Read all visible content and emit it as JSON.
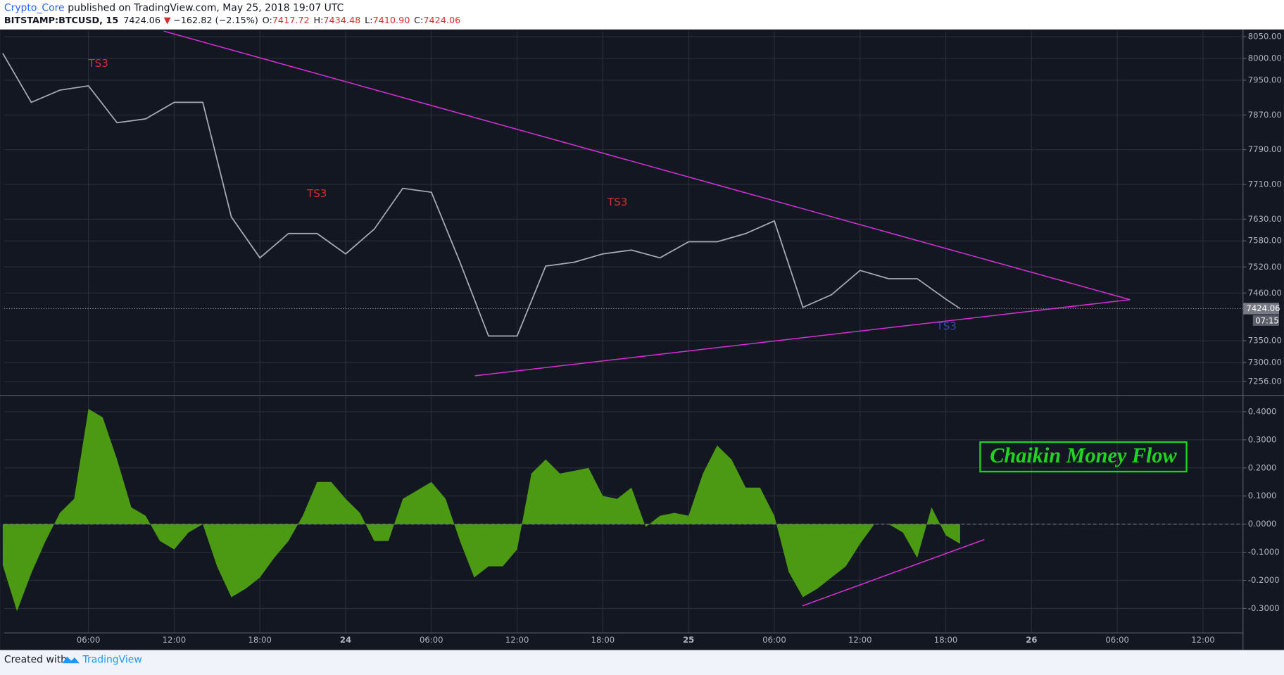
{
  "header": {
    "author": "Crypto_Core",
    "published": "published on TradingView.com, May 25, 2018 19:07 UTC",
    "symbol": "BITSTAMP:BTCUSD, 15",
    "change_arrow": "▼",
    "change": "−162.82 (−2.15%)",
    "ohlc": [
      {
        "label": "O:",
        "value": "7417.72"
      },
      {
        "label": "H:",
        "value": "7434.48"
      },
      {
        "label": "L:",
        "value": "7410.90"
      },
      {
        "label": "C:"
      }
    ]
  },
  "chart_data": [
    {
      "type": "line",
      "x": [
        0,
        2,
        4,
        6,
        8,
        10,
        12,
        14,
        16,
        18,
        20,
        22,
        24,
        26,
        28,
        30,
        32,
        34,
        36,
        38,
        40,
        42,
        44,
        46,
        48,
        50,
        52,
        54,
        56,
        58,
        60,
        62,
        64,
        66,
        67
      ],
      "series": [
        {
          "color": "#a7abb8",
          "values": [
            8012,
            7899,
            7927,
            7937,
            7852,
            7861,
            7899,
            7899,
            7635,
            7541,
            7597,
            7597,
            7550,
            7607,
            7701,
            7692,
            7531,
            7361,
            7361,
            7522,
            7531,
            7550,
            7559,
            7541,
            7578,
            7578,
            7597,
            7626,
            7427,
            7456,
            7512,
            7493,
            7493,
            7446,
            7424.06
          ]
        }
      ],
      "xlim": [
        0.1,
        86.8
      ],
      "ylim": [
        7226,
        8063
      ],
      "xticks": [
        {
          "value": 6,
          "label": "06:00"
        },
        {
          "value": 12,
          "label": "12:00"
        },
        {
          "value": 18,
          "label": "18:00"
        },
        24,
        {
          "value": 30,
          "label": "06:00"
        },
        {
          "value": 36,
          "label": "12:00"
        },
        {
          "value": 42,
          "label": "18:00"
        },
        {
          "value": 48,
          "label": "25"
        },
        {
          "value": 54,
          "label": "06:00"
        },
        {
          "value": 60,
          "label": "12:00"
        },
        {
          "value": 66,
          "label": "18:00"
        },
        {
          "value": 72,
          "label": "26"
        },
        {
          "value": 78,
          "label": "06:00"
        },
        {
          "value": 84,
          "label": "12:00"
        }
      ],
      "yticks": [
        {
          "value": 8050,
          "label": "8050.00"
        },
        {
          "value": 8000,
          "label": "8000.00"
        },
        {
          "value": 7950,
          "label": "7950.00"
        },
        {
          "value": 7870,
          "label": "7870.00"
        },
        {
          "value": 7790,
          "label": "7790.00"
        },
        {
          "value": 7710,
          "label": "7710.00"
        },
        {
          "value": 7630,
          "label": "7630.00"
        },
        {
          "value": 7580,
          "label": "7580.00"
        },
        {
          "value": 7520,
          "label": "7520.00"
        },
        {
          "value": 7460,
          "label": "7460.00"
        },
        {
          "value": 7350,
          "label": "7350.00"
        },
        {
          "value": 7300,
          "label": "7300.00"
        },
        {
          "value": 7256,
          "label": "7256.00"
        }
      ],
      "grid": true,
      "last_price": {
        "value": 7424.06,
        "label": "7424.06"
      },
      "countdown": "07:15",
      "annotations": [
        "TS3",
        "TS3",
        "TS3",
        "TS3"
      ]
    },
    {
      "type": "area",
      "title": "Chaikin Money Flow",
      "x": [
        0,
        1,
        2,
        3,
        4,
        5,
        6,
        7,
        8,
        9,
        10,
        11,
        12,
        13,
        14,
        15,
        16,
        17,
        18,
        19,
        20,
        21,
        22,
        23,
        24,
        25,
        26,
        27,
        28,
        29,
        30,
        31,
        32,
        33,
        34,
        35,
        36,
        37,
        38,
        39,
        40,
        41,
        42,
        43,
        44,
        45,
        46,
        47,
        48,
        49,
        50,
        51,
        52,
        53,
        54,
        55,
        56,
        57,
        58,
        59,
        60,
        61,
        62,
        63,
        64,
        65,
        66,
        67
      ],
      "series": [
        {
          "color": "#4c9a13",
          "values": [
            -0.146,
            -0.31,
            -0.175,
            -0.06,
            0.04,
            0.09,
            0.41,
            0.38,
            0.23,
            0.06,
            0.03,
            -0.06,
            -0.09,
            -0.03,
            0.0,
            -0.15,
            -0.26,
            -0.23,
            -0.19,
            -0.12,
            -0.06,
            0.03,
            0.15,
            0.15,
            0.09,
            0.04,
            -0.06,
            -0.06,
            0.09,
            0.12,
            0.15,
            0.09,
            -0.06,
            -0.19,
            -0.15,
            -0.15,
            -0.09,
            0.18,
            0.23,
            0.18,
            0.19,
            0.2,
            0.1,
            0.09,
            0.13,
            -0.01,
            0.03,
            0.04,
            0.03,
            0.18,
            0.28,
            0.23,
            0.13,
            0.13,
            0.03,
            -0.17,
            -0.26,
            -0.23,
            -0.19,
            -0.15,
            -0.07,
            0.0,
            0.0,
            -0.03,
            -0.12,
            0.06,
            -0.04,
            -0.07
          ]
        }
      ],
      "xlim": [
        0.1,
        86.8
      ],
      "ylim": [
        -0.387,
        0.455
      ],
      "yticks": [
        {
          "value": 0.4,
          "label": "0.4000"
        },
        {
          "value": 0.3,
          "label": "0.3000"
        },
        {
          "value": 0.2,
          "label": "0.2000"
        },
        {
          "value": 0.1,
          "label": "0.1000"
        },
        {
          "value": 0,
          "label": "0.0000"
        },
        {
          "value": -0.1,
          "label": "-0.1000"
        },
        {
          "value": -0.2,
          "label": "-0.2000"
        },
        {
          "value": -0.3,
          "label": "-0.3000"
        }
      ],
      "grid": true
    }
  ],
  "footer": {
    "created": "Created with",
    "brand": "TradingView"
  }
}
